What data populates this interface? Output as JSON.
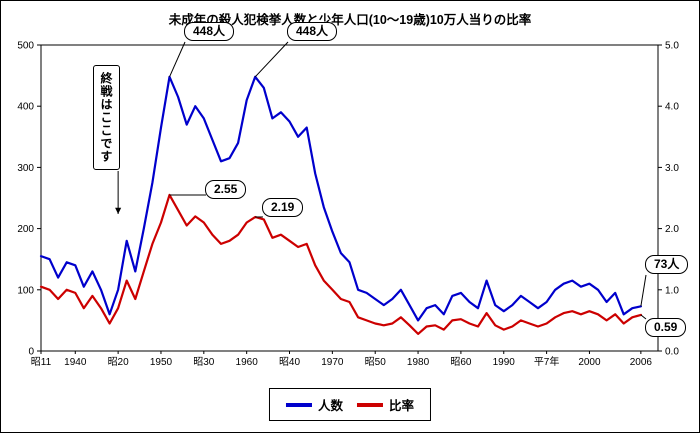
{
  "chart_data": {
    "type": "line",
    "title": "未成年の殺人犯検挙人数と少年人口(10～19歳)10万人当りの比率",
    "left_axis": {
      "max": 500,
      "ticks": [
        0,
        100,
        200,
        300,
        400,
        500
      ]
    },
    "right_axis": {
      "max": 5,
      "ticks": [
        0,
        1,
        2,
        3,
        4,
        5
      ]
    },
    "x_start": 1936,
    "x_end": 2006,
    "x_ticks": [
      {
        "year": 1936,
        "label": "昭11"
      },
      {
        "year": 1940,
        "label": "1940"
      },
      {
        "year": 1945,
        "label": "昭20"
      },
      {
        "year": 1950,
        "label": "1950"
      },
      {
        "year": 1955,
        "label": "昭30"
      },
      {
        "year": 1960,
        "label": "1960"
      },
      {
        "year": 1965,
        "label": "昭40"
      },
      {
        "year": 1970,
        "label": "1970"
      },
      {
        "year": 1975,
        "label": "昭50"
      },
      {
        "year": 1980,
        "label": "1980"
      },
      {
        "year": 1985,
        "label": "昭60"
      },
      {
        "year": 1990,
        "label": "1990"
      },
      {
        "year": 1995,
        "label": "平7年"
      },
      {
        "year": 2000,
        "label": "2000"
      },
      {
        "year": 2006,
        "label": "2006"
      }
    ],
    "series": [
      {
        "name": "人数",
        "axis": "left",
        "color": "#0000cc",
        "values": [
          155,
          150,
          120,
          145,
          140,
          105,
          130,
          100,
          60,
          100,
          180,
          130,
          200,
          275,
          365,
          448,
          415,
          370,
          400,
          380,
          345,
          310,
          315,
          340,
          410,
          448,
          430,
          380,
          390,
          375,
          350,
          365,
          290,
          235,
          195,
          160,
          145,
          100,
          95,
          85,
          75,
          85,
          100,
          75,
          50,
          70,
          75,
          60,
          90,
          95,
          80,
          70,
          115,
          75,
          65,
          75,
          90,
          80,
          70,
          80,
          100,
          110,
          115,
          105,
          110,
          100,
          80,
          95,
          60,
          70,
          73
        ]
      },
      {
        "name": "比率",
        "axis": "right",
        "color": "#cc0000",
        "values": [
          1.05,
          1.0,
          0.85,
          1.0,
          0.95,
          0.7,
          0.9,
          0.7,
          0.45,
          0.7,
          1.15,
          0.85,
          1.3,
          1.75,
          2.1,
          2.55,
          2.3,
          2.05,
          2.2,
          2.1,
          1.9,
          1.75,
          1.8,
          1.9,
          2.1,
          2.19,
          2.15,
          1.85,
          1.9,
          1.8,
          1.7,
          1.75,
          1.4,
          1.15,
          1.0,
          0.85,
          0.8,
          0.55,
          0.5,
          0.45,
          0.42,
          0.45,
          0.55,
          0.42,
          0.28,
          0.4,
          0.42,
          0.35,
          0.5,
          0.52,
          0.45,
          0.4,
          0.62,
          0.42,
          0.35,
          0.4,
          0.5,
          0.45,
          0.4,
          0.45,
          0.55,
          0.62,
          0.65,
          0.6,
          0.65,
          0.6,
          0.5,
          0.6,
          0.45,
          0.55,
          0.59
        ]
      }
    ],
    "annotations": [
      {
        "label": "448人",
        "target": {
          "year": 1951,
          "series": 0,
          "value": 448
        }
      },
      {
        "label": "448人",
        "target": {
          "year": 1961,
          "series": 0,
          "value": 448
        }
      },
      {
        "label": "2.55",
        "target": {
          "year": 1951,
          "series": 1,
          "value": 2.55
        }
      },
      {
        "label": "2.19",
        "target": {
          "year": 1961,
          "series": 1,
          "value": 2.19
        }
      },
      {
        "label": "73人",
        "target": {
          "year": 2006,
          "series": 0,
          "value": 73
        }
      },
      {
        "label": "0.59",
        "target": {
          "year": 2006,
          "series": 1,
          "value": 0.59
        }
      },
      {
        "label": "終戦はここです",
        "target": {
          "year": 1945,
          "py": 213
        },
        "arrow": true
      }
    ],
    "legend_position": "bottom"
  }
}
